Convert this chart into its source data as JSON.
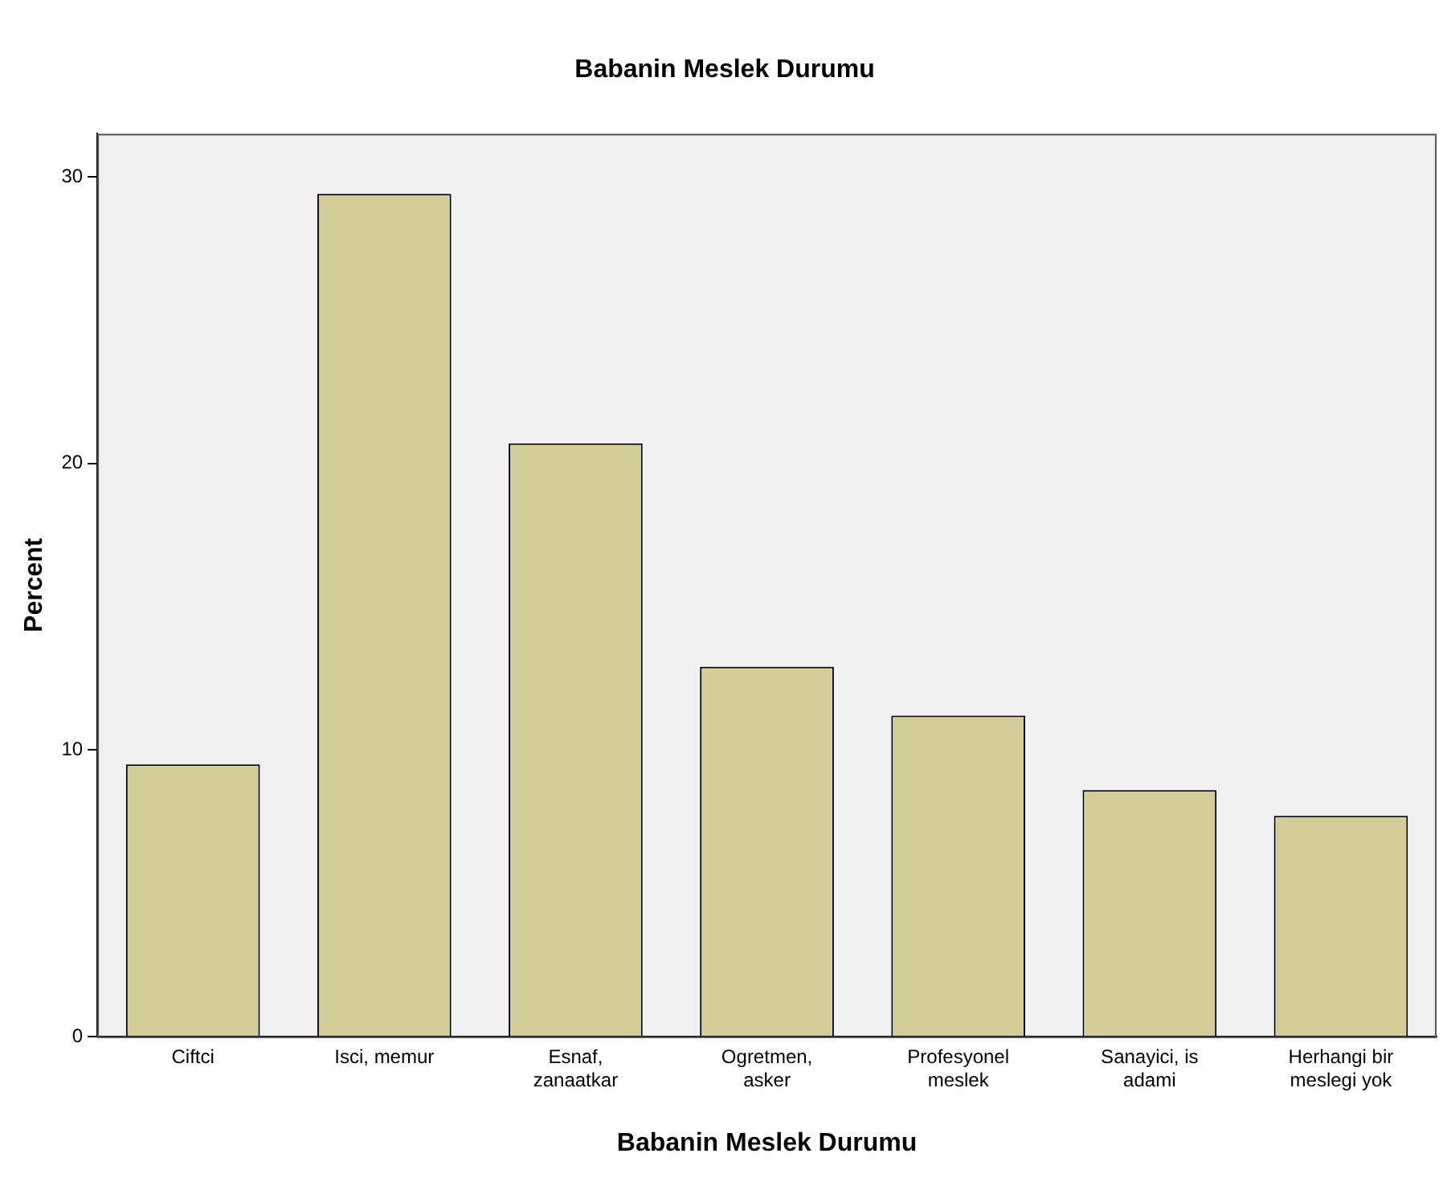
{
  "chart_data": {
    "type": "bar",
    "title": "Babanin Meslek Durumu",
    "xlabel": "Babanin Meslek Durumu",
    "ylabel": "Percent",
    "categories": [
      "Ciftci",
      "Isci, memur",
      "Esnaf, zanaatkar",
      "Ogretmen, asker",
      "Profesyonel meslek",
      "Sanayici, is adami",
      "Herhangi bir meslegi yok"
    ],
    "values": [
      9.5,
      29.4,
      20.7,
      12.9,
      11.2,
      8.6,
      7.7
    ],
    "color": "#d3ce97",
    "ylim": [
      0,
      31.5
    ],
    "yticks": [
      0,
      10,
      20,
      30
    ],
    "grid": false,
    "legend": false
  }
}
